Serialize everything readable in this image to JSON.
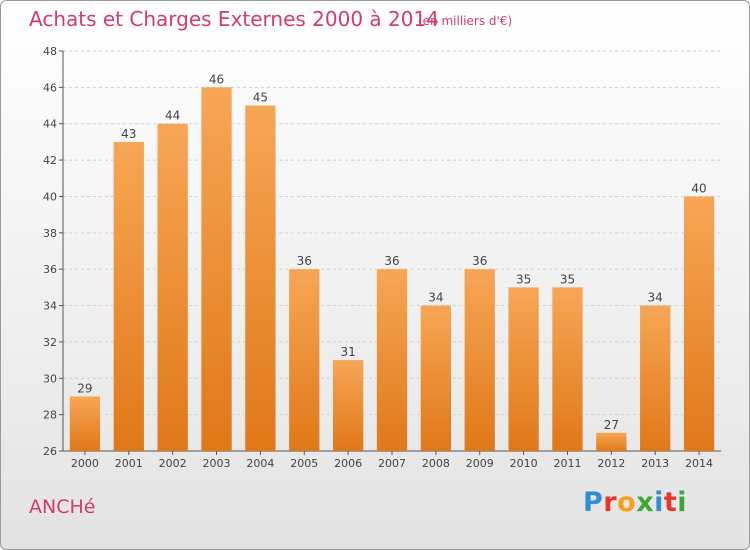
{
  "header": {
    "title": "Achats et Charges Externes 2000 à 2014",
    "subtitle": "(en milliers d'€)"
  },
  "footer": {
    "commune": "ANCHé",
    "brand": "Proxiti",
    "brand_colors": [
      "#2f8fd6",
      "#e8362a",
      "#f3a11c",
      "#3da835",
      "#2f8fd6",
      "#e8362a",
      "#3da835"
    ]
  },
  "colors": {
    "bar_top": "#f7a656",
    "bar_bottom": "#e07818",
    "text_accent": "#d23c6c"
  },
  "chart_data": {
    "type": "bar",
    "categories": [
      "2000",
      "2001",
      "2002",
      "2003",
      "2004",
      "2005",
      "2006",
      "2007",
      "2008",
      "2009",
      "2010",
      "2011",
      "2012",
      "2013",
      "2014"
    ],
    "values": [
      29,
      43,
      44,
      46,
      45,
      36,
      31,
      36,
      34,
      36,
      35,
      35,
      27,
      34,
      40
    ],
    "ylim": [
      26,
      48
    ],
    "yticks": [
      26,
      28,
      30,
      32,
      34,
      36,
      38,
      40,
      42,
      44,
      46,
      48
    ],
    "grid": "horizontal-dashed",
    "xlabel": "",
    "ylabel": ""
  }
}
